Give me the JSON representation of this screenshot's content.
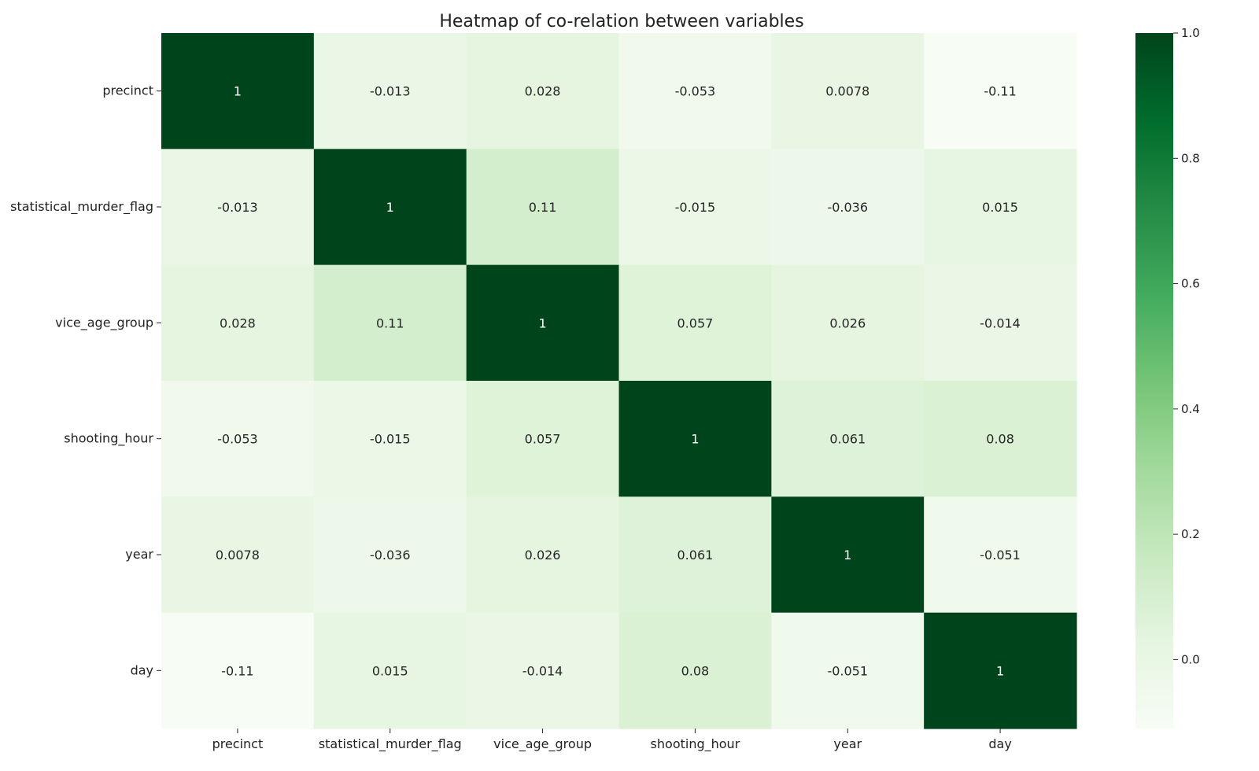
{
  "chart_data": {
    "type": "heatmap",
    "title": "Heatmap of co-relation between variables",
    "xlabel": "",
    "ylabel": "",
    "x_categories": [
      "precinct",
      "statistical_murder_flag",
      "vice_age_group",
      "shooting_hour",
      "year",
      "day"
    ],
    "y_categories": [
      "precinct",
      "statistical_murder_flag",
      "vice_age_group",
      "shooting_hour",
      "year",
      "day"
    ],
    "values": [
      [
        1,
        -0.013,
        0.028,
        -0.053,
        0.0078,
        -0.11
      ],
      [
        -0.013,
        1,
        0.11,
        -0.015,
        -0.036,
        0.015
      ],
      [
        0.028,
        0.11,
        1,
        0.057,
        0.026,
        -0.014
      ],
      [
        -0.053,
        -0.015,
        0.057,
        1,
        0.061,
        0.08
      ],
      [
        0.0078,
        -0.036,
        0.026,
        0.061,
        1,
        -0.051
      ],
      [
        -0.11,
        0.015,
        -0.014,
        0.08,
        -0.051,
        1
      ]
    ],
    "annotations": [
      [
        "1",
        "-0.013",
        "0.028",
        "-0.053",
        "0.0078",
        "-0.11"
      ],
      [
        "-0.013",
        "1",
        "0.11",
        "-0.015",
        "-0.036",
        "0.015"
      ],
      [
        "0.028",
        "0.11",
        "1",
        "0.057",
        "0.026",
        "-0.014"
      ],
      [
        "-0.053",
        "-0.015",
        "0.057",
        "1",
        "0.061",
        "0.08"
      ],
      [
        "0.0078",
        "-0.036",
        "0.026",
        "0.061",
        "1",
        "-0.051"
      ],
      [
        "-0.11",
        "0.015",
        "-0.014",
        "0.08",
        "-0.051",
        "1"
      ]
    ],
    "colormap": "Greens",
    "color_range": [
      -0.11,
      1.0
    ],
    "colorbar": {
      "ticks": [
        0.0,
        0.2,
        0.4,
        0.6,
        0.8,
        1.0
      ],
      "tick_labels": [
        "0.0",
        "0.2",
        "0.4",
        "0.6",
        "0.8",
        "1.0"
      ],
      "placement": "right"
    },
    "grid": false
  }
}
